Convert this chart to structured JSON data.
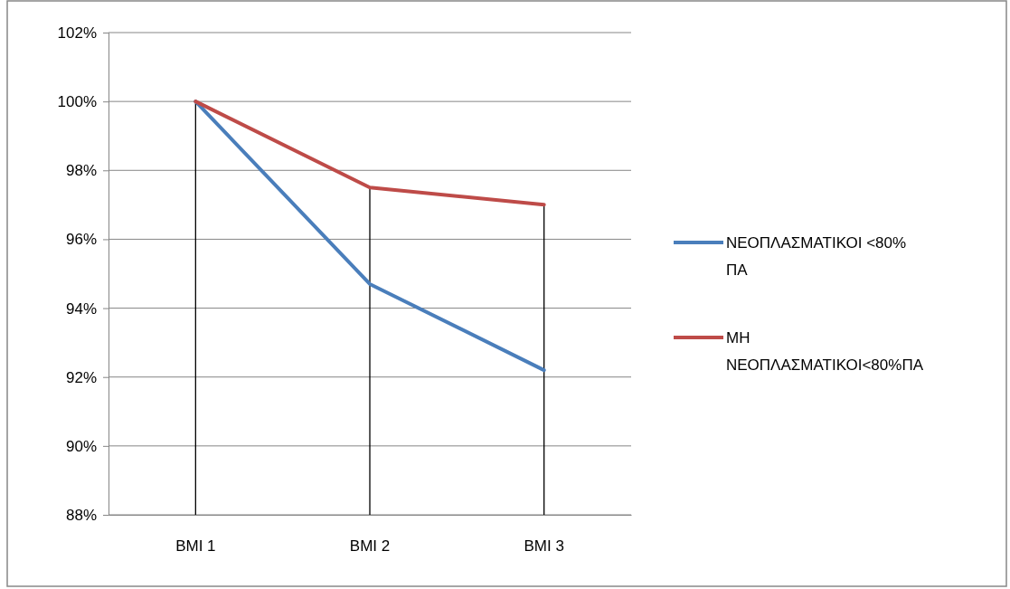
{
  "chart_data": {
    "type": "line",
    "categories": [
      "BMI 1",
      "BMI 2",
      "BMI 3"
    ],
    "series": [
      {
        "name": "ΝΕΟΠΛΑΣΜΑΤΙΚΟΙ <80% ΠΑ",
        "color": "#4a7ebb",
        "values": [
          100,
          94.7,
          92.2
        ]
      },
      {
        "name": "ΜΗ ΝΕΟΠΛΑΣΜΑΤΙΚΟΙ<80%ΠΑ",
        "color": "#be4b48",
        "values": [
          100,
          97.5,
          97.0
        ]
      }
    ],
    "ylim": [
      88,
      102
    ],
    "yticks": [
      {
        "value": 88,
        "label": "88%"
      },
      {
        "value": 90,
        "label": "90%"
      },
      {
        "value": 92,
        "label": "92%"
      },
      {
        "value": 94,
        "label": "94%"
      },
      {
        "value": 96,
        "label": "96%"
      },
      {
        "value": 98,
        "label": "98%"
      },
      {
        "value": 100,
        "label": "100%"
      },
      {
        "value": 102,
        "label": "102%"
      }
    ],
    "ref_lines": [
      {
        "axis": "x",
        "value": "BMI 1",
        "color": "#000000"
      },
      {
        "axis": "x",
        "value": "BMI 2",
        "color": "#000000"
      },
      {
        "axis": "x",
        "value": "BMI 3",
        "color": "#000000"
      }
    ],
    "grid": "y",
    "legend": "right",
    "marker": "none",
    "line_style": "solid"
  }
}
